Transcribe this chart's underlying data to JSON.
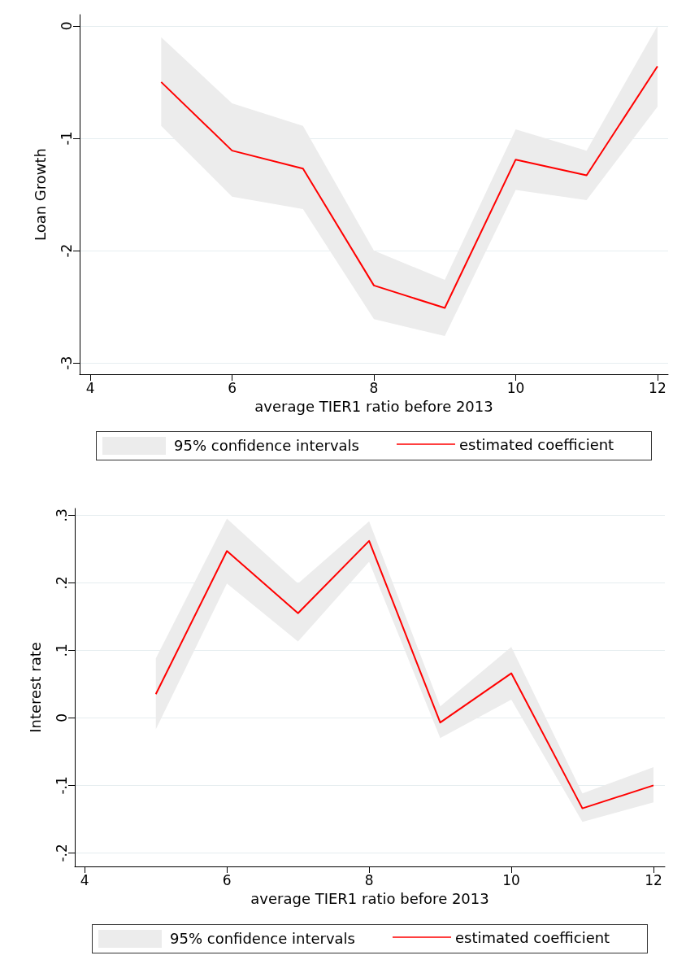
{
  "chart_data": [
    {
      "type": "line",
      "xlabel": "average TIER1 ratio before 2013",
      "ylabel": "Loan Growth",
      "x": [
        5,
        6,
        7,
        8,
        9,
        10,
        11,
        12
      ],
      "series": [
        {
          "name": "estimated coefficient",
          "color": "#ff0000",
          "values": [
            -0.5,
            -1.11,
            -1.27,
            -2.31,
            -2.51,
            -1.19,
            -1.33,
            -0.36
          ],
          "lower": [
            -0.89,
            -1.52,
            -1.63,
            -2.61,
            -2.76,
            -1.46,
            -1.55,
            -0.72
          ],
          "upper": [
            -0.1,
            -0.69,
            -0.89,
            -2.0,
            -2.26,
            -0.92,
            -1.11,
            0.0
          ]
        }
      ],
      "annotations": [
        "95% confidence intervals"
      ],
      "xlim": [
        3.85,
        12.15
      ],
      "xticks": [
        4,
        6,
        8,
        10,
        12
      ],
      "ylim": [
        -3.1,
        0.1
      ],
      "yticks": [
        -3,
        -2,
        -1,
        0
      ],
      "grid": "y",
      "legend": "bottom",
      "marker": "none",
      "line_style": "solid"
    },
    {
      "type": "line",
      "xlabel": "average TIER1 ratio before 2013",
      "ylabel": "Interest rate",
      "x": [
        5,
        6,
        7,
        8,
        9,
        10,
        11,
        12
      ],
      "series": [
        {
          "name": "estimated coefficient",
          "color": "#ff0000",
          "values": [
            0.035,
            0.247,
            0.155,
            0.262,
            -0.007,
            0.066,
            -0.134,
            -0.1
          ],
          "lower": [
            -0.017,
            0.199,
            0.113,
            0.231,
            -0.03,
            0.027,
            -0.154,
            -0.125
          ],
          "upper": [
            0.088,
            0.295,
            0.199,
            0.291,
            0.017,
            0.105,
            -0.112,
            -0.073
          ]
        }
      ],
      "annotations": [
        "95% confidence intervals"
      ],
      "xlim": [
        3.86,
        12.16
      ],
      "xticks": [
        4,
        6,
        8,
        10,
        12
      ],
      "ylim": [
        -0.22,
        0.31
      ],
      "yticks": [
        {
          "value": -0.2,
          "label": "-.2"
        },
        {
          "value": -0.1,
          "label": "-.1"
        },
        {
          "value": 0,
          "label": "0"
        },
        {
          "value": 0.1,
          "label": ".1"
        },
        {
          "value": 0.2,
          "label": ".2"
        },
        {
          "value": 0.3,
          "label": ".3"
        }
      ],
      "grid": "y",
      "legend": "bottom",
      "marker": "none",
      "line_style": "solid"
    }
  ]
}
